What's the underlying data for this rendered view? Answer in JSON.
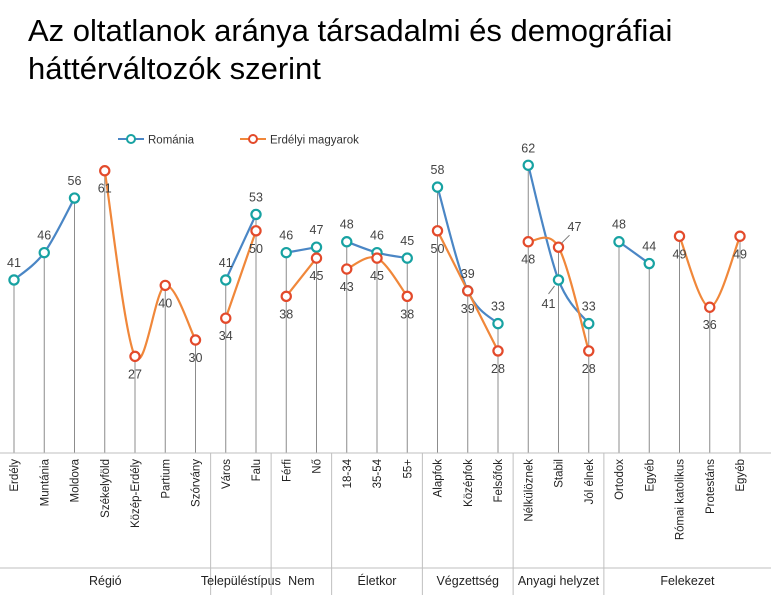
{
  "chart_data": {
    "type": "line",
    "title": "Az oltatlanok aránya társadalmi és demográfiai háttérváltozók szerint",
    "categories": [
      "Erdély",
      "Muntánia",
      "Moldova",
      "Székelyföld",
      "Közép-Erdély",
      "Partium",
      "Szórvány",
      "Város",
      "Falu",
      "Férfi",
      "Nő",
      "18-34",
      "35-54",
      "55+",
      "Alapfok",
      "Középfok",
      "Felsőfok",
      "Nélkülöznek",
      "Stabil",
      "Jól élnek",
      "Ortodox",
      "Egyéb",
      "Római katolikus",
      "Protestáns",
      "Egyéb"
    ],
    "groups": [
      {
        "label": "Régió",
        "start": 0,
        "end": 6
      },
      {
        "label": "Településtípus",
        "start": 7,
        "end": 8
      },
      {
        "label": "Nem",
        "start": 9,
        "end": 10
      },
      {
        "label": "Életkor",
        "start": 11,
        "end": 13
      },
      {
        "label": "Végzettség",
        "start": 14,
        "end": 16
      },
      {
        "label": "Anyagi helyzet",
        "start": 17,
        "end": 19
      },
      {
        "label": "Felekezet",
        "start": 20,
        "end": 24
      }
    ],
    "series": [
      {
        "name": "Románia",
        "color": "#4a86c5",
        "markerColor": "#17a2a2",
        "values": [
          41,
          46,
          56,
          null,
          null,
          null,
          null,
          41,
          53,
          46,
          47,
          48,
          46,
          45,
          58,
          39,
          33,
          62,
          41,
          33,
          48,
          44,
          null,
          null,
          null
        ]
      },
      {
        "name": "Erdélyi magyarok",
        "color": "#f0873a",
        "markerColor": "#e34a2b",
        "values": [
          null,
          null,
          null,
          61,
          27,
          40,
          30,
          34,
          50,
          38,
          45,
          43,
          45,
          38,
          50,
          39,
          28,
          48,
          47,
          28,
          null,
          null,
          49,
          36,
          49
        ]
      }
    ],
    "ylim": [
      0,
      70
    ],
    "legend_position": "top-center"
  }
}
